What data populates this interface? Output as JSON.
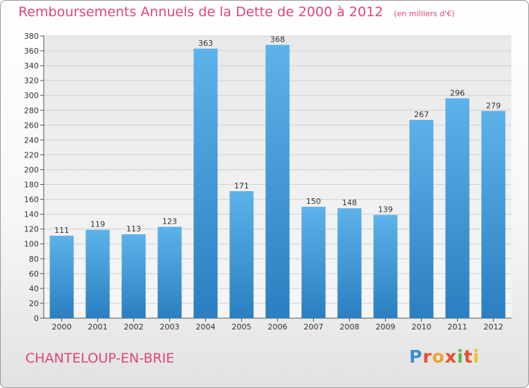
{
  "chart_data": {
    "type": "bar",
    "title": "Remboursements Annuels de la Dette de 2000 à 2012",
    "subtitle": "(en milliers d'€)",
    "categories": [
      "2000",
      "2001",
      "2002",
      "2003",
      "2004",
      "2005",
      "2006",
      "2007",
      "2008",
      "2009",
      "2010",
      "2011",
      "2012"
    ],
    "values": [
      111,
      119,
      113,
      123,
      363,
      171,
      368,
      150,
      148,
      139,
      267,
      296,
      279
    ],
    "ylim": [
      0,
      380
    ],
    "yticks": [
      0,
      20,
      40,
      60,
      80,
      100,
      120,
      140,
      160,
      180,
      200,
      220,
      240,
      260,
      280,
      300,
      320,
      340,
      360,
      380
    ],
    "grid": true,
    "bar_color": "#4aa3e0",
    "title_color": "#e0457b"
  },
  "footer": {
    "commune": "CHANTELOUP-EN-BRIE",
    "brand_letters": [
      "P",
      "r",
      "o",
      "x",
      "i",
      "t",
      "i"
    ],
    "brand_colors": [
      "#3a8fd0",
      "#e94e2a",
      "#f0a030",
      "#e94e2a",
      "#5bb84a",
      "#e94e2a",
      "#f0c020"
    ]
  }
}
